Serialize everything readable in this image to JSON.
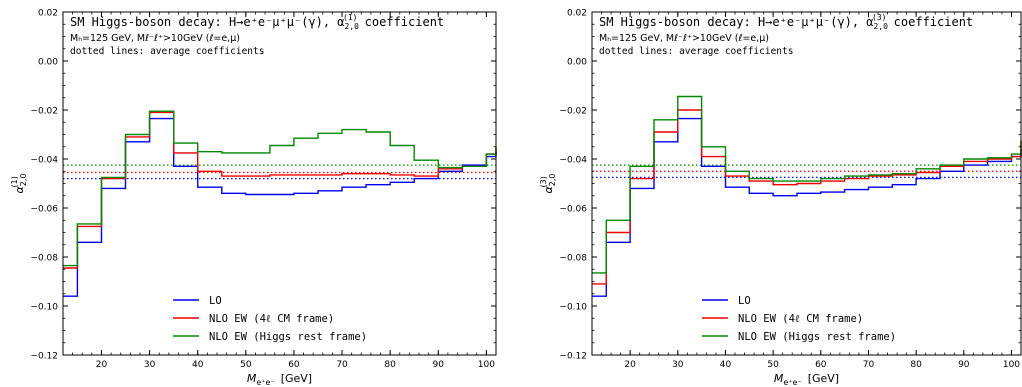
{
  "chart_data": [
    {
      "type": "step",
      "title": "SM Higgs-boson decay: H→e⁺e⁻μ⁺μ⁻(γ), α₂,₀⁽¹⁾ coefficient",
      "subtitle1": "M_H = 125 GeV,  M_ℓ⁻ℓ⁺ > 10 GeV  (ℓ = e, μ)",
      "subtitle2": "dotted lines: average coefficients",
      "xlabel": "M_e⁺e⁻  [GeV]",
      "ylabel": "α₂,₀⁽¹⁾",
      "xlim": [
        12,
        102
      ],
      "ylim": [
        -0.12,
        0.02
      ],
      "xticks": [
        20,
        30,
        40,
        50,
        60,
        70,
        80,
        90,
        100
      ],
      "xtick_labels": [
        "20",
        "30",
        "40",
        "50",
        "60",
        "70",
        "80",
        "90",
        "100"
      ],
      "yticks": [
        -0.12,
        -0.1,
        -0.08,
        -0.06,
        -0.04,
        -0.02,
        0.0,
        0.02
      ],
      "ytick_labels": [
        "−0.12",
        "−0.10",
        "−0.08",
        "−0.06",
        "−0.04",
        "−0.02",
        "0.00",
        "0.02"
      ],
      "bin_edges": [
        12,
        15,
        20,
        25,
        30,
        35,
        40,
        45,
        50,
        55,
        60,
        65,
        70,
        75,
        80,
        85,
        90,
        95,
        100,
        102
      ],
      "series": [
        {
          "name": "LO",
          "color": "#0000ee",
          "values": [
            -0.096,
            -0.074,
            -0.052,
            -0.033,
            -0.0235,
            -0.043,
            -0.0515,
            -0.054,
            -0.0545,
            -0.0545,
            -0.054,
            -0.053,
            -0.0515,
            -0.0505,
            -0.0495,
            -0.048,
            -0.045,
            -0.0425,
            -0.039,
            -0.037
          ],
          "average": -0.048
        },
        {
          "name": "NLO EW (4ℓ CM frame)",
          "color": "#ee0000",
          "values": [
            -0.0845,
            -0.0675,
            -0.048,
            -0.031,
            -0.021,
            -0.0375,
            -0.045,
            -0.047,
            -0.047,
            -0.0465,
            -0.0465,
            -0.0465,
            -0.046,
            -0.046,
            -0.0465,
            -0.047,
            -0.044,
            -0.043,
            -0.038,
            -0.0355
          ],
          "average": -0.0455
        },
        {
          "name": "NLO EW (Higgs rest frame)",
          "color": "#008800",
          "values": [
            -0.0835,
            -0.0665,
            -0.0475,
            -0.03,
            -0.0205,
            -0.0335,
            -0.037,
            -0.0375,
            -0.0375,
            -0.0345,
            -0.0315,
            -0.0295,
            -0.028,
            -0.029,
            -0.0345,
            -0.0405,
            -0.0435,
            -0.043,
            -0.038,
            -0.035
          ],
          "average": -0.0425
        }
      ]
    },
    {
      "type": "step",
      "title": "SM Higgs-boson decay: H→e⁺e⁻μ⁺μ⁻(γ), α₂,₀⁽³⁾ coefficient",
      "subtitle1": "M_H = 125 GeV,  M_ℓ⁻ℓ⁺ > 10 GeV  (ℓ = e, μ)",
      "subtitle2": "dotted lines: average coefficients",
      "xlabel": "M_e⁺e⁻  [GeV]",
      "ylabel": "α₂,₀⁽³⁾",
      "xlim": [
        12,
        102
      ],
      "ylim": [
        -0.12,
        0.02
      ],
      "xticks": [
        20,
        30,
        40,
        50,
        60,
        70,
        80,
        90,
        100
      ],
      "xtick_labels": [
        "20",
        "30",
        "40",
        "50",
        "60",
        "70",
        "80",
        "90",
        "100"
      ],
      "yticks": [
        -0.12,
        -0.1,
        -0.08,
        -0.06,
        -0.04,
        -0.02,
        0.0,
        0.02
      ],
      "ytick_labels": [
        "−0.12",
        "−0.10",
        "−0.08",
        "−0.06",
        "−0.04",
        "−0.02",
        "0.00",
        "0.02"
      ],
      "bin_edges": [
        12,
        15,
        20,
        25,
        30,
        35,
        40,
        45,
        50,
        55,
        60,
        65,
        70,
        75,
        80,
        85,
        90,
        95,
        100,
        102
      ],
      "series": [
        {
          "name": "LO",
          "color": "#0000ee",
          "values": [
            -0.096,
            -0.074,
            -0.052,
            -0.033,
            -0.0235,
            -0.043,
            -0.0515,
            -0.054,
            -0.055,
            -0.054,
            -0.0535,
            -0.0525,
            -0.0515,
            -0.0505,
            -0.048,
            -0.045,
            -0.0425,
            -0.041,
            -0.039,
            -0.0365
          ],
          "average": -0.0475
        },
        {
          "name": "NLO EW (4ℓ CM frame)",
          "color": "#ee0000",
          "values": [
            -0.091,
            -0.07,
            -0.048,
            -0.029,
            -0.02,
            -0.039,
            -0.047,
            -0.049,
            -0.0505,
            -0.05,
            -0.049,
            -0.048,
            -0.047,
            -0.0465,
            -0.0455,
            -0.043,
            -0.041,
            -0.04,
            -0.039,
            -0.0325
          ],
          "average": -0.045
        },
        {
          "name": "NLO EW (Higgs rest frame)",
          "color": "#008800",
          "values": [
            -0.0865,
            -0.065,
            -0.043,
            -0.024,
            -0.0145,
            -0.035,
            -0.045,
            -0.048,
            -0.049,
            -0.049,
            -0.048,
            -0.047,
            -0.0465,
            -0.046,
            -0.044,
            -0.0425,
            -0.04,
            -0.0395,
            -0.038,
            -0.0325
          ],
          "average": -0.0425
        }
      ]
    }
  ],
  "panels": [
    {
      "title_pre": "SM Higgs-boson decay: H→e⁺e⁻μ⁺μ⁻(γ), α",
      "title_sub": "2,0",
      "title_sup": "(1)",
      "title_post": " coefficient",
      "sub1": "Mₕ=125 GeV,  Mℓ⁻ℓ⁺>10GeV  (ℓ=e,μ)",
      "sub2": "dotted lines: average coefficients",
      "ylabel_main": "α",
      "ylabel_sub": "2,0",
      "ylabel_sup": "(1)",
      "xlabel_main": "M",
      "xlabel_sub": "e⁺e⁻",
      "xlabel_unit": "[GeV]"
    },
    {
      "title_pre": "SM Higgs-boson decay: H→e⁺e⁻μ⁺μ⁻(γ), α",
      "title_sub": "2,0",
      "title_sup": "(3)",
      "title_post": " coefficient",
      "sub1": "Mₕ=125 GeV,  Mℓ⁻ℓ⁺>10GeV  (ℓ=e,μ)",
      "sub2": "dotted lines: average coefficients",
      "ylabel_main": "α",
      "ylabel_sub": "2,0",
      "ylabel_sup": "(3)",
      "xlabel_main": "M",
      "xlabel_sub": "e⁺e⁻",
      "xlabel_unit": "[GeV]"
    }
  ]
}
